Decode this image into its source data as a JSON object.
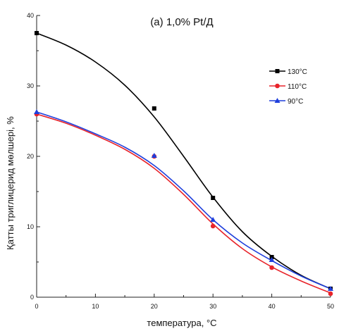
{
  "chart_data": {
    "type": "line",
    "title": "(a) 1,0% Pt/Д",
    "xlabel": "температура, °C",
    "ylabel": "Қатты триглицерид мөлшері, %",
    "xlim": [
      0,
      50
    ],
    "ylim": [
      0,
      40
    ],
    "x_ticks": [
      "0",
      "10",
      "20",
      "30",
      "40",
      "50"
    ],
    "y_ticks": [
      "0",
      "10",
      "20",
      "30",
      "40"
    ],
    "legend_position": "right",
    "grid": false,
    "series": [
      {
        "name": "130°C",
        "color": "#000000",
        "marker": "square",
        "points": [
          [
            0,
            37.5
          ],
          [
            20,
            26.8
          ],
          [
            30,
            14.1
          ],
          [
            40,
            5.7
          ],
          [
            50,
            1.2
          ]
        ],
        "curve": [
          [
            0,
            37.5
          ],
          [
            5,
            35.8
          ],
          [
            10,
            33.4
          ],
          [
            15,
            30.1
          ],
          [
            20,
            25.6
          ],
          [
            25,
            20.0
          ],
          [
            30,
            14.2
          ],
          [
            35,
            9.3
          ],
          [
            40,
            5.8
          ],
          [
            45,
            3.1
          ],
          [
            50,
            1.2
          ]
        ]
      },
      {
        "name": "110°C",
        "color": "#e8242b",
        "marker": "circle",
        "points": [
          [
            0,
            26.0
          ],
          [
            20,
            20.0
          ],
          [
            30,
            10.1
          ],
          [
            40,
            4.2
          ],
          [
            50,
            0.5
          ]
        ],
        "curve": [
          [
            0,
            26.0
          ],
          [
            5,
            24.7
          ],
          [
            10,
            23.0
          ],
          [
            15,
            21.0
          ],
          [
            20,
            18.3
          ],
          [
            25,
            14.6
          ],
          [
            30,
            10.4
          ],
          [
            35,
            6.9
          ],
          [
            40,
            4.3
          ],
          [
            45,
            2.3
          ],
          [
            50,
            0.6
          ]
        ]
      },
      {
        "name": "90°C",
        "color": "#1f3fdc",
        "marker": "triangle",
        "points": [
          [
            0,
            26.3
          ],
          [
            20,
            20.1
          ],
          [
            30,
            11.0
          ],
          [
            40,
            5.3
          ],
          [
            50,
            1.2
          ]
        ],
        "curve": [
          [
            0,
            26.3
          ],
          [
            5,
            24.9
          ],
          [
            10,
            23.2
          ],
          [
            15,
            21.3
          ],
          [
            20,
            18.7
          ],
          [
            25,
            15.1
          ],
          [
            30,
            11.0
          ],
          [
            35,
            7.7
          ],
          [
            40,
            5.2
          ],
          [
            45,
            3.0
          ],
          [
            50,
            1.2
          ]
        ]
      }
    ]
  }
}
